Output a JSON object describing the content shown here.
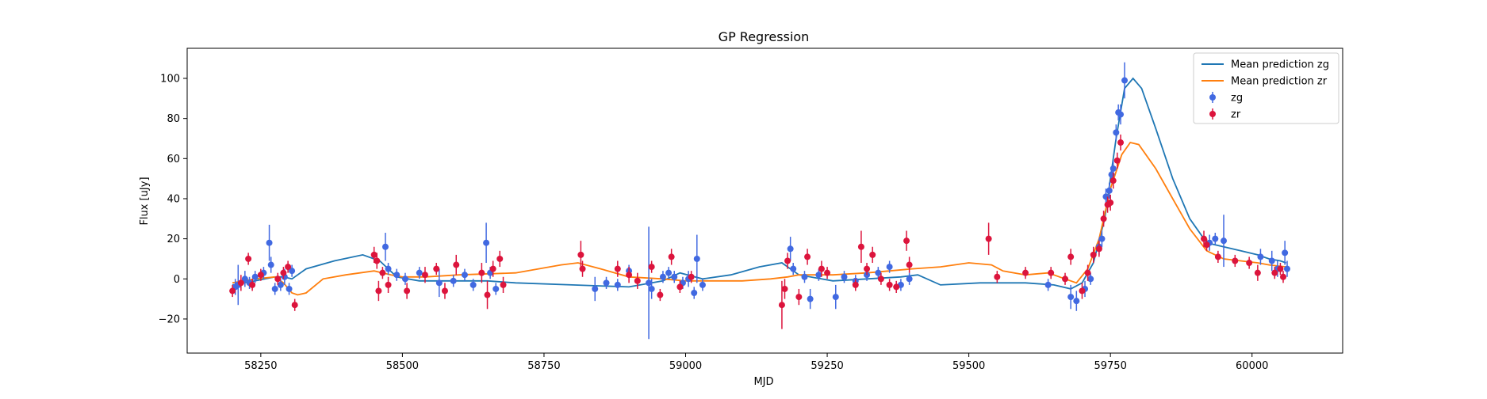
{
  "chart_data": {
    "type": "scatter",
    "title": "GP Regression",
    "xlabel": "MJD",
    "ylabel": "Flux [uJy]",
    "xlim": [
      58120,
      60160
    ],
    "ylim": [
      -37,
      115
    ],
    "xticks": [
      58250,
      58500,
      58750,
      59000,
      59250,
      59500,
      59750,
      60000
    ],
    "yticks": [
      -20,
      0,
      20,
      40,
      60,
      80,
      100
    ],
    "grid": false,
    "legend_position": "top-right",
    "colors": {
      "zg": "#4169e1",
      "zr": "#dc143c",
      "mean_zg": "#1f77b4",
      "mean_zr": "#ff7f0e"
    },
    "lines": [
      {
        "name": "Mean prediction zg",
        "color": "#1f77b4",
        "x": [
          58200,
          58240,
          58275,
          58290,
          58305,
          58330,
          58380,
          58430,
          58460,
          58490,
          58530,
          58580,
          58650,
          58700,
          58800,
          58900,
          58960,
          58990,
          59030,
          59080,
          59130,
          59170,
          59200,
          59260,
          59320,
          59380,
          59410,
          59450,
          59520,
          59600,
          59650,
          59680,
          59700,
          59720,
          59740,
          59760,
          59775,
          59790,
          59805,
          59830,
          59860,
          59890,
          59920,
          59950,
          59980,
          60010,
          60030,
          60050,
          60060
        ],
        "y": [
          -3,
          -1,
          1,
          1,
          0,
          5,
          9,
          12,
          9,
          1,
          -1,
          -1,
          -1,
          -2,
          -3,
          -4,
          -1,
          3,
          0,
          2,
          6,
          8,
          2,
          -1,
          0,
          1,
          2,
          -3,
          -2,
          -2,
          -3,
          -5,
          -2,
          8,
          30,
          70,
          95,
          100,
          95,
          75,
          50,
          30,
          18,
          16,
          14,
          12,
          10,
          9,
          8
        ]
      },
      {
        "name": "Mean prediction zr",
        "color": "#ff7f0e",
        "x": [
          58200,
          58240,
          58275,
          58290,
          58305,
          58315,
          58330,
          58360,
          58400,
          58450,
          58480,
          58500,
          58540,
          58600,
          58700,
          58780,
          58810,
          58850,
          58900,
          58960,
          59000,
          59050,
          59100,
          59150,
          59180,
          59200,
          59260,
          59320,
          59360,
          59400,
          59450,
          59500,
          59540,
          59560,
          59600,
          59640,
          59670,
          59690,
          59710,
          59730,
          59750,
          59770,
          59785,
          59800,
          59830,
          59860,
          59890,
          59920,
          59950,
          59980,
          60010,
          60030,
          60060
        ],
        "y": [
          -2,
          0,
          1,
          -2,
          -7,
          -8,
          -7,
          0,
          2,
          4,
          2,
          1,
          1,
          2,
          3,
          7,
          8,
          5,
          1,
          0,
          -1,
          -1,
          -1,
          0,
          1,
          2,
          2,
          3,
          4,
          5,
          6,
          8,
          7,
          4,
          2,
          3,
          0,
          -2,
          5,
          20,
          45,
          62,
          68,
          67,
          55,
          40,
          25,
          14,
          10,
          9,
          8,
          7,
          6
        ]
      }
    ],
    "series": [
      {
        "name": "zg",
        "color": "#4169e1",
        "points": [
          {
            "x": 58205,
            "y": -4,
            "err": 4
          },
          {
            "x": 58210,
            "y": -3,
            "err": 10
          },
          {
            "x": 58222,
            "y": 0,
            "err": 4
          },
          {
            "x": 58230,
            "y": -2,
            "err": 3
          },
          {
            "x": 58240,
            "y": 1,
            "err": 3
          },
          {
            "x": 58255,
            "y": 3,
            "err": 3
          },
          {
            "x": 58265,
            "y": 18,
            "err": 9
          },
          {
            "x": 58268,
            "y": 7,
            "err": 4
          },
          {
            "x": 58275,
            "y": -5,
            "err": 3
          },
          {
            "x": 58285,
            "y": -3,
            "err": 3
          },
          {
            "x": 58292,
            "y": 1,
            "err": 4
          },
          {
            "x": 58300,
            "y": -5,
            "err": 3
          },
          {
            "x": 58305,
            "y": 4,
            "err": 3
          },
          {
            "x": 58470,
            "y": 16,
            "err": 7
          },
          {
            "x": 58475,
            "y": 5,
            "err": 3
          },
          {
            "x": 58490,
            "y": 2,
            "err": 3
          },
          {
            "x": 58505,
            "y": 0,
            "err": 3
          },
          {
            "x": 58530,
            "y": 3,
            "err": 3
          },
          {
            "x": 58565,
            "y": -2,
            "err": 7
          },
          {
            "x": 58590,
            "y": -1,
            "err": 3
          },
          {
            "x": 58610,
            "y": 2,
            "err": 3
          },
          {
            "x": 58625,
            "y": -3,
            "err": 3
          },
          {
            "x": 58648,
            "y": 18,
            "err": 10
          },
          {
            "x": 58655,
            "y": 3,
            "err": 3
          },
          {
            "x": 58665,
            "y": -5,
            "err": 3
          },
          {
            "x": 58840,
            "y": -5,
            "err": 6
          },
          {
            "x": 58860,
            "y": -2,
            "err": 3
          },
          {
            "x": 58880,
            "y": -3,
            "err": 3
          },
          {
            "x": 58900,
            "y": 4,
            "err": 3
          },
          {
            "x": 58935,
            "y": -2,
            "err": 28
          },
          {
            "x": 58940,
            "y": -5,
            "err": 5
          },
          {
            "x": 58960,
            "y": 1,
            "err": 3
          },
          {
            "x": 58970,
            "y": 3,
            "err": 3
          },
          {
            "x": 58980,
            "y": 1,
            "err": 3
          },
          {
            "x": 58995,
            "y": -2,
            "err": 3
          },
          {
            "x": 59005,
            "y": 0,
            "err": 4
          },
          {
            "x": 59015,
            "y": -7,
            "err": 3
          },
          {
            "x": 59020,
            "y": 10,
            "err": 12
          },
          {
            "x": 59030,
            "y": -3,
            "err": 3
          },
          {
            "x": 59185,
            "y": 15,
            "err": 6
          },
          {
            "x": 59190,
            "y": 5,
            "err": 3
          },
          {
            "x": 59210,
            "y": 1,
            "err": 3
          },
          {
            "x": 59220,
            "y": -10,
            "err": 5
          },
          {
            "x": 59235,
            "y": 2,
            "err": 3
          },
          {
            "x": 59265,
            "y": -9,
            "err": 6
          },
          {
            "x": 59280,
            "y": 1,
            "err": 3
          },
          {
            "x": 59300,
            "y": -1,
            "err": 3
          },
          {
            "x": 59320,
            "y": 2,
            "err": 3
          },
          {
            "x": 59340,
            "y": 3,
            "err": 3
          },
          {
            "x": 59360,
            "y": 6,
            "err": 3
          },
          {
            "x": 59380,
            "y": -3,
            "err": 3
          },
          {
            "x": 59395,
            "y": 0,
            "err": 3
          },
          {
            "x": 59640,
            "y": -3,
            "err": 3
          },
          {
            "x": 59680,
            "y": -9,
            "err": 6
          },
          {
            "x": 59690,
            "y": -11,
            "err": 5
          },
          {
            "x": 59705,
            "y": -5,
            "err": 4
          },
          {
            "x": 59715,
            "y": 0,
            "err": 3
          },
          {
            "x": 59730,
            "y": 16,
            "err": 4
          },
          {
            "x": 59735,
            "y": 20,
            "err": 4
          },
          {
            "x": 59742,
            "y": 41,
            "err": 4
          },
          {
            "x": 59748,
            "y": 44,
            "err": 4
          },
          {
            "x": 59752,
            "y": 52,
            "err": 4
          },
          {
            "x": 59755,
            "y": 55,
            "err": 4
          },
          {
            "x": 59760,
            "y": 73,
            "err": 4
          },
          {
            "x": 59764,
            "y": 83,
            "err": 4
          },
          {
            "x": 59768,
            "y": 82,
            "err": 5
          },
          {
            "x": 59775,
            "y": 99,
            "err": 9
          },
          {
            "x": 59925,
            "y": 18,
            "err": 4
          },
          {
            "x": 59935,
            "y": 20,
            "err": 3
          },
          {
            "x": 59950,
            "y": 19,
            "err": 13
          },
          {
            "x": 60015,
            "y": 11,
            "err": 4
          },
          {
            "x": 60035,
            "y": 9,
            "err": 5
          },
          {
            "x": 60045,
            "y": 5,
            "err": 4
          },
          {
            "x": 60058,
            "y": 13,
            "err": 6
          },
          {
            "x": 60062,
            "y": 5,
            "err": 4
          }
        ]
      },
      {
        "name": "zr",
        "color": "#dc143c",
        "points": [
          {
            "x": 58200,
            "y": -6,
            "err": 3
          },
          {
            "x": 58215,
            "y": -2,
            "err": 4
          },
          {
            "x": 58228,
            "y": 10,
            "err": 3
          },
          {
            "x": 58235,
            "y": -3,
            "err": 3
          },
          {
            "x": 58250,
            "y": 2,
            "err": 3
          },
          {
            "x": 58280,
            "y": 0,
            "err": 3
          },
          {
            "x": 58290,
            "y": 3,
            "err": 3
          },
          {
            "x": 58298,
            "y": 6,
            "err": 3
          },
          {
            "x": 58310,
            "y": -13,
            "err": 3
          },
          {
            "x": 58450,
            "y": 12,
            "err": 4
          },
          {
            "x": 58455,
            "y": 9,
            "err": 4
          },
          {
            "x": 58458,
            "y": -6,
            "err": 5
          },
          {
            "x": 58465,
            "y": 3,
            "err": 3
          },
          {
            "x": 58475,
            "y": -3,
            "err": 4
          },
          {
            "x": 58508,
            "y": -6,
            "err": 4
          },
          {
            "x": 58540,
            "y": 2,
            "err": 4
          },
          {
            "x": 58560,
            "y": 5,
            "err": 3
          },
          {
            "x": 58575,
            "y": -6,
            "err": 4
          },
          {
            "x": 58595,
            "y": 7,
            "err": 5
          },
          {
            "x": 58640,
            "y": 3,
            "err": 5
          },
          {
            "x": 58650,
            "y": -8,
            "err": 7
          },
          {
            "x": 58660,
            "y": 5,
            "err": 4
          },
          {
            "x": 58672,
            "y": 10,
            "err": 4
          },
          {
            "x": 58678,
            "y": -3,
            "err": 4
          },
          {
            "x": 58815,
            "y": 12,
            "err": 7
          },
          {
            "x": 58818,
            "y": 5,
            "err": 4
          },
          {
            "x": 58880,
            "y": 5,
            "err": 4
          },
          {
            "x": 58900,
            "y": 2,
            "err": 4
          },
          {
            "x": 58915,
            "y": -1,
            "err": 4
          },
          {
            "x": 58940,
            "y": 6,
            "err": 3
          },
          {
            "x": 58955,
            "y": -8,
            "err": 3
          },
          {
            "x": 58975,
            "y": 11,
            "err": 4
          },
          {
            "x": 58990,
            "y": -4,
            "err": 3
          },
          {
            "x": 59010,
            "y": 1,
            "err": 3
          },
          {
            "x": 59170,
            "y": -13,
            "err": 12
          },
          {
            "x": 59175,
            "y": -5,
            "err": 5
          },
          {
            "x": 59180,
            "y": 9,
            "err": 4
          },
          {
            "x": 59200,
            "y": -9,
            "err": 4
          },
          {
            "x": 59215,
            "y": 11,
            "err": 4
          },
          {
            "x": 59240,
            "y": 5,
            "err": 4
          },
          {
            "x": 59250,
            "y": 3,
            "err": 3
          },
          {
            "x": 59300,
            "y": -3,
            "err": 3
          },
          {
            "x": 59310,
            "y": 16,
            "err": 8
          },
          {
            "x": 59320,
            "y": 5,
            "err": 3
          },
          {
            "x": 59330,
            "y": 12,
            "err": 4
          },
          {
            "x": 59345,
            "y": 0,
            "err": 3
          },
          {
            "x": 59360,
            "y": -3,
            "err": 3
          },
          {
            "x": 59372,
            "y": -4,
            "err": 3
          },
          {
            "x": 59390,
            "y": 19,
            "err": 5
          },
          {
            "x": 59395,
            "y": 7,
            "err": 4
          },
          {
            "x": 59535,
            "y": 20,
            "err": 8
          },
          {
            "x": 59550,
            "y": 1,
            "err": 3
          },
          {
            "x": 59600,
            "y": 3,
            "err": 3
          },
          {
            "x": 59645,
            "y": 3,
            "err": 3
          },
          {
            "x": 59670,
            "y": 0,
            "err": 3
          },
          {
            "x": 59680,
            "y": 11,
            "err": 4
          },
          {
            "x": 59700,
            "y": -6,
            "err": 4
          },
          {
            "x": 59710,
            "y": 3,
            "err": 4
          },
          {
            "x": 59720,
            "y": 12,
            "err": 4
          },
          {
            "x": 59730,
            "y": 15,
            "err": 4
          },
          {
            "x": 59738,
            "y": 30,
            "err": 4
          },
          {
            "x": 59745,
            "y": 37,
            "err": 4
          },
          {
            "x": 59750,
            "y": 38,
            "err": 4
          },
          {
            "x": 59755,
            "y": 49,
            "err": 4
          },
          {
            "x": 59762,
            "y": 59,
            "err": 4
          },
          {
            "x": 59768,
            "y": 68,
            "err": 4
          },
          {
            "x": 59915,
            "y": 20,
            "err": 4
          },
          {
            "x": 59920,
            "y": 17,
            "err": 3
          },
          {
            "x": 59940,
            "y": 11,
            "err": 3
          },
          {
            "x": 59970,
            "y": 9,
            "err": 3
          },
          {
            "x": 59995,
            "y": 8,
            "err": 3
          },
          {
            "x": 60010,
            "y": 3,
            "err": 4
          },
          {
            "x": 60040,
            "y": 3,
            "err": 3
          },
          {
            "x": 60050,
            "y": 5,
            "err": 3
          },
          {
            "x": 60055,
            "y": 1,
            "err": 3
          }
        ]
      }
    ],
    "legend": [
      "Mean prediction zg",
      "Mean prediction zr",
      "zg",
      "zr"
    ]
  }
}
